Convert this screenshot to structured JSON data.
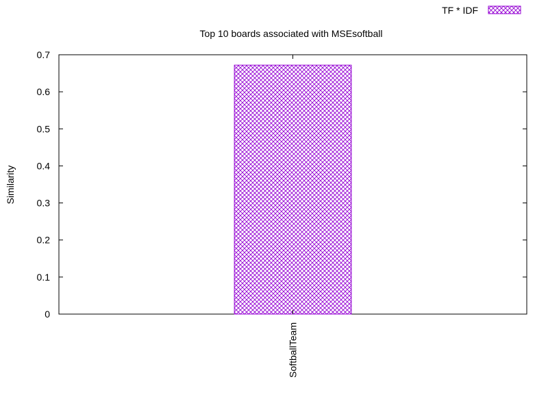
{
  "chart_data": {
    "type": "bar",
    "title": "Top 10 boards associated with MSEsoftball",
    "xlabel": "",
    "ylabel": "Similarity",
    "categories": [
      "SoftballTeam"
    ],
    "series": [
      {
        "name": "TF * IDF",
        "values": [
          0.672
        ]
      }
    ],
    "ylim": [
      0,
      0.7
    ],
    "yticks": [
      "0",
      "0.1",
      "0.2",
      "0.3",
      "0.4",
      "0.5",
      "0.6",
      "0.7"
    ],
    "grid": false,
    "legend_position": "top-right",
    "colors": {
      "bar": "#9400d3",
      "axis": "#000000"
    }
  }
}
